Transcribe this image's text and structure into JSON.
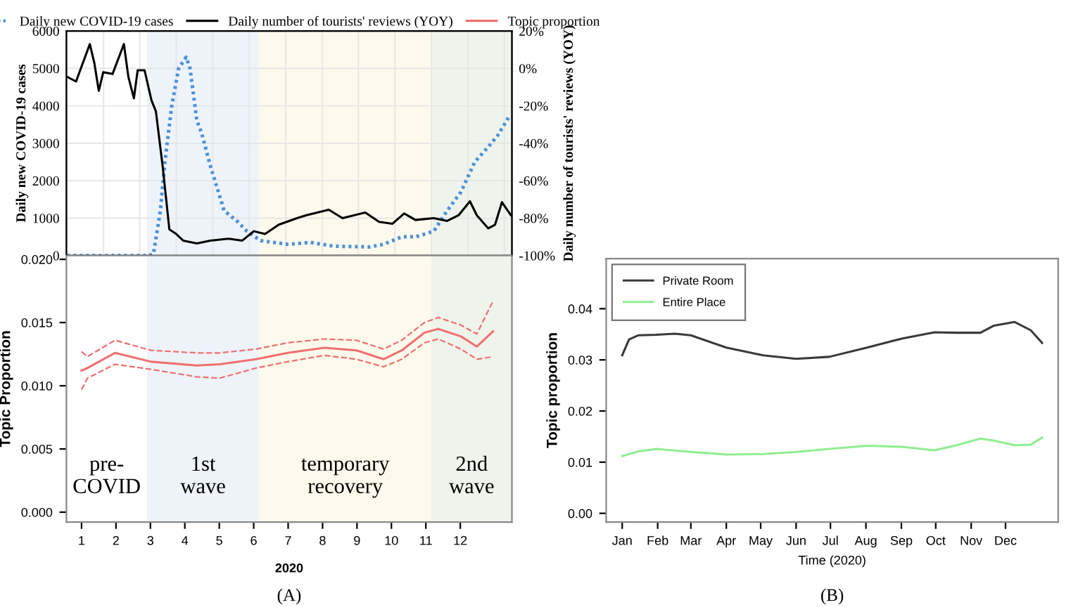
{
  "chart_data": [
    {
      "type": "line",
      "ylabel": "Daily new COVID-19 cases",
      "y2label": "Daily number of tourists' reviews (YOY)",
      "xlim": [
        0.56,
        13.5
      ],
      "xticks": [
        {
          "value": 1.64,
          "label": null
        },
        {
          "value": 2.69,
          "label": null
        },
        {
          "value": 3.75,
          "label": null
        },
        {
          "value": 4.81,
          "label": null
        },
        {
          "value": 5.87,
          "label": null
        },
        {
          "value": 6.93,
          "label": null
        },
        {
          "value": 7.99,
          "label": null
        },
        {
          "value": 9.04,
          "label": null
        },
        {
          "value": 10.1,
          "label": null
        },
        {
          "value": 11.16,
          "label": null
        },
        {
          "value": 12.22,
          "label": null
        },
        {
          "value": 13.28,
          "label": null
        }
      ],
      "ylim": [
        0,
        6000
      ],
      "yticks": [
        0,
        1000,
        2000,
        3000,
        4000,
        5000,
        6000
      ],
      "y2lim": [
        -100,
        20
      ],
      "y2ticks": [
        {
          "value": -100,
          "label": "-100%"
        },
        {
          "value": -80,
          "label": "-80%"
        },
        {
          "value": -60,
          "label": "-60%"
        },
        {
          "value": -40,
          "label": "-40%"
        },
        {
          "value": -20,
          "label": "-20%"
        },
        {
          "value": 0,
          "label": "0%"
        },
        {
          "value": 20,
          "label": "20%"
        }
      ],
      "tick_labels": "y",
      "grid": true,
      "legend": "top",
      "bands": [
        {
          "axis": "x",
          "from": 2.9,
          "to": 6.16,
          "color": "#eef3fa"
        },
        {
          "axis": "x",
          "from": 6.16,
          "to": 11.16,
          "color": "#fdf9ec"
        },
        {
          "axis": "x",
          "from": 11.16,
          "to": 13.5,
          "color": "#eef4eb"
        }
      ],
      "series": [
        {
          "name": "Daily new COVID-19 cases",
          "color": "#4a90d9",
          "line_style": "dotted",
          "x": [
            0.58,
            2.96,
            3.09,
            3.29,
            3.42,
            3.62,
            3.82,
            4.04,
            4.15,
            4.35,
            4.48,
            4.74,
            5.14,
            5.54,
            5.8,
            6.2,
            6.99,
            7.65,
            8.32,
            9.37,
            9.77,
            10.3,
            10.7,
            11.23,
            11.62,
            12.02,
            12.42,
            12.81,
            13.08,
            13.41
          ],
          "values": [
            0,
            0,
            50,
            1200,
            2500,
            4000,
            5000,
            5300,
            5000,
            3600,
            3300,
            2400,
            1200,
            900,
            650,
            400,
            300,
            350,
            250,
            230,
            300,
            500,
            500,
            650,
            1200,
            1700,
            2500,
            2900,
            3200,
            3700
          ]
        },
        {
          "name": "Daily number of tourists' reviews (YOY)",
          "color": "#000000",
          "line_style": "solid",
          "axis": "y2",
          "x": [
            0.58,
            0.84,
            1.24,
            1.37,
            1.5,
            1.63,
            1.9,
            2.23,
            2.36,
            2.52,
            2.63,
            2.83,
            3.03,
            3.16,
            3.36,
            3.55,
            3.75,
            3.95,
            4.35,
            4.74,
            5.27,
            5.67,
            6.0,
            6.33,
            6.73,
            7.26,
            7.52,
            8.18,
            8.58,
            9.24,
            9.64,
            10.03,
            10.37,
            10.7,
            11.23,
            11.62,
            11.95,
            12.28,
            12.48,
            12.81,
            13.01,
            13.21,
            13.47
          ],
          "values": [
            -4.5,
            -7,
            13,
            3,
            -12,
            -2,
            -3,
            13,
            -4.5,
            -16,
            -1,
            -1,
            -17,
            -23,
            -53,
            -86,
            -88.5,
            -92,
            -93.5,
            -92,
            -91,
            -92,
            -87,
            -88.5,
            -83.5,
            -80,
            -78.5,
            -75.5,
            -80,
            -77,
            -82,
            -83,
            -77.5,
            -81,
            -80,
            -81.5,
            -78.5,
            -71,
            -78.5,
            -85.5,
            -83.5,
            -71.5,
            -78.5
          ]
        }
      ]
    },
    {
      "type": "line",
      "ylabel": "Topic Proportion",
      "xlabel": "2020",
      "xlim": [
        0.56,
        13.5
      ],
      "xticks": [
        1,
        2,
        3,
        4,
        5,
        6,
        7,
        8,
        9,
        10,
        11,
        12
      ],
      "ylim": [
        -0.00078,
        0.0203
      ],
      "yticks": [
        {
          "value": 0,
          "label": "0.000"
        },
        {
          "value": 0.005,
          "label": "0.005"
        },
        {
          "value": 0.01,
          "label": "0.010"
        },
        {
          "value": 0.015,
          "label": "0.015"
        },
        {
          "value": 0.02,
          "label": "0.020"
        }
      ],
      "legend": "top",
      "annotations": [
        "pre-\nCOVID",
        "(A)"
      ],
      "bands": [
        {
          "axis": "x",
          "from": 2.9,
          "to": 6.16,
          "color": "#eef3fa",
          "label": "1st\nwave"
        },
        {
          "axis": "x",
          "from": 6.16,
          "to": 11.16,
          "color": "#fdf9ec",
          "label": "temporary\nrecovery"
        },
        {
          "axis": "x",
          "from": 11.16,
          "to": 13.5,
          "color": "#eef4eb",
          "label": "2nd\nwave"
        }
      ],
      "series": [
        {
          "name": "Topic proportion",
          "color": "#f07070",
          "line_style": "solid",
          "x": [
            1.0,
            1.17,
            1.97,
            3.02,
            4.35,
            5.01,
            6.07,
            6.99,
            8.05,
            8.98,
            9.77,
            10.3,
            10.96,
            11.36,
            12.02,
            12.48,
            12.95
          ],
          "values": [
            0.0112,
            0.0114,
            0.0126,
            0.0119,
            0.0116,
            0.0117,
            0.0121,
            0.0126,
            0.013,
            0.0128,
            0.0121,
            0.0128,
            0.0142,
            0.0145,
            0.0139,
            0.0131,
            0.0143
          ]
        },
        {
          "color": "#f07070",
          "line_style": "dashed",
          "x": [
            1.0,
            1.17,
            1.97,
            3.02,
            4.35,
            5.01,
            6.07,
            6.99,
            8.05,
            8.98,
            9.77,
            10.3,
            10.96,
            11.36,
            12.02,
            12.48,
            12.95
          ],
          "values": [
            0.0097,
            0.0106,
            0.0117,
            0.0113,
            0.0107,
            0.0106,
            0.0114,
            0.0119,
            0.0124,
            0.0121,
            0.0115,
            0.0121,
            0.0134,
            0.0137,
            0.0129,
            0.0121,
            0.0123
          ]
        },
        {
          "color": "#f07070",
          "line_style": "dashed",
          "x": [
            1.0,
            1.17,
            1.97,
            3.02,
            4.35,
            5.01,
            6.07,
            6.99,
            8.05,
            8.98,
            9.77,
            10.3,
            10.96,
            11.36,
            12.02,
            12.48,
            12.95
          ],
          "values": [
            0.0127,
            0.0123,
            0.0136,
            0.0128,
            0.0126,
            0.0126,
            0.0129,
            0.0134,
            0.0137,
            0.0136,
            0.0129,
            0.0136,
            0.015,
            0.0154,
            0.0148,
            0.0141,
            0.0167
          ]
        }
      ]
    },
    {
      "type": "line",
      "ylabel": "Topic proportion",
      "xlabel": "Time (2020)",
      "xlim": [
        "2019-12-18",
        "2021-01-16"
      ],
      "xticks": [
        {
          "value": "2020-01-01",
          "label": "Jan"
        },
        {
          "value": "2020-02-01",
          "label": "Feb"
        },
        {
          "value": "2020-03-01",
          "label": "Mar"
        },
        {
          "value": "2020-04-01",
          "label": "Apr"
        },
        {
          "value": "2020-05-01",
          "label": "May"
        },
        {
          "value": "2020-06-01",
          "label": "Jun"
        },
        {
          "value": "2020-07-01",
          "label": "Jul"
        },
        {
          "value": "2020-08-01",
          "label": "Aug"
        },
        {
          "value": "2020-09-01",
          "label": "Sep"
        },
        {
          "value": "2020-10-01",
          "label": "Oct"
        },
        {
          "value": "2020-11-01",
          "label": "Nov"
        },
        {
          "value": "2020-12-01",
          "label": "Dec"
        }
      ],
      "ylim": [
        -0.0017,
        0.0498
      ],
      "yticks": [
        {
          "value": 0,
          "label": "0.00"
        },
        {
          "value": 0.01,
          "label": "0.01"
        },
        {
          "value": 0.02,
          "label": "0.02"
        },
        {
          "value": 0.03,
          "label": "0.03"
        },
        {
          "value": 0.04,
          "label": "0.04"
        }
      ],
      "legend": "top left",
      "annotations": [
        "(B)"
      ],
      "series": [
        {
          "name": "Private Room",
          "color": "#3a3a3a",
          "line_style": "solid",
          "x": [
            "2020-01-01",
            "2020-01-07",
            "2020-01-15",
            "2020-01-31",
            "2020-02-16",
            "2020-03-01",
            "2020-04-01",
            "2020-05-03",
            "2020-06-01",
            "2020-06-30",
            "2020-08-02",
            "2020-09-02",
            "2020-09-30",
            "2020-10-19",
            "2020-11-09",
            "2020-11-21",
            "2020-12-09",
            "2020-12-23",
            "2021-01-02"
          ],
          "values": [
            0.0309,
            0.034,
            0.0348,
            0.0349,
            0.0351,
            0.0348,
            0.0324,
            0.0309,
            0.0302,
            0.0306,
            0.0324,
            0.0342,
            0.0354,
            0.0353,
            0.0353,
            0.0367,
            0.0374,
            0.0358,
            0.0333
          ]
        },
        {
          "name": "Entire Place",
          "color": "#90ee90",
          "line_style": "solid",
          "x": [
            "2020-01-01",
            "2020-01-15",
            "2020-01-31",
            "2020-03-01",
            "2020-04-01",
            "2020-05-03",
            "2020-06-01",
            "2020-06-30",
            "2020-08-02",
            "2020-09-02",
            "2020-09-30",
            "2020-10-19",
            "2020-11-09",
            "2020-11-21",
            "2020-12-09",
            "2020-12-23",
            "2021-01-02"
          ],
          "values": [
            0.0112,
            0.0121,
            0.0126,
            0.012,
            0.0115,
            0.0116,
            0.012,
            0.0126,
            0.0132,
            0.013,
            0.0123,
            0.0133,
            0.0146,
            0.0142,
            0.0133,
            0.0134,
            0.0148
          ]
        }
      ]
    }
  ]
}
